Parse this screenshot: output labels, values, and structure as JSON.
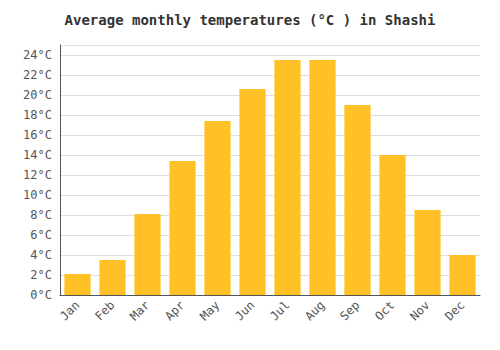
{
  "chart_data": {
    "type": "bar",
    "title": "Average monthly temperatures (°C ) in Shashi",
    "categories": [
      "Jan",
      "Feb",
      "Mar",
      "Apr",
      "May",
      "Jun",
      "Jul",
      "Aug",
      "Sep",
      "Oct",
      "Nov",
      "Dec"
    ],
    "values": [
      2.1,
      3.5,
      8.1,
      13.4,
      17.4,
      20.6,
      23.5,
      23.5,
      19.0,
      14.0,
      8.5,
      4.0
    ],
    "color": "#FFC125",
    "ylim": [
      0,
      25
    ],
    "yticks": [
      {
        "value": 0,
        "label": "0°C"
      },
      {
        "value": 2,
        "label": "2°C"
      },
      {
        "value": 4,
        "label": "4°C"
      },
      {
        "value": 6,
        "label": "6°C"
      },
      {
        "value": 8,
        "label": "8°C"
      },
      {
        "value": 10,
        "label": "10°C"
      },
      {
        "value": 12,
        "label": "12°C"
      },
      {
        "value": 14,
        "label": "14°C"
      },
      {
        "value": 16,
        "label": "16°C"
      },
      {
        "value": 18,
        "label": "18°C"
      },
      {
        "value": 20,
        "label": "20°C"
      },
      {
        "value": 22,
        "label": "22°C"
      },
      {
        "value": 24,
        "label": "24°C"
      }
    ],
    "grid": true
  }
}
